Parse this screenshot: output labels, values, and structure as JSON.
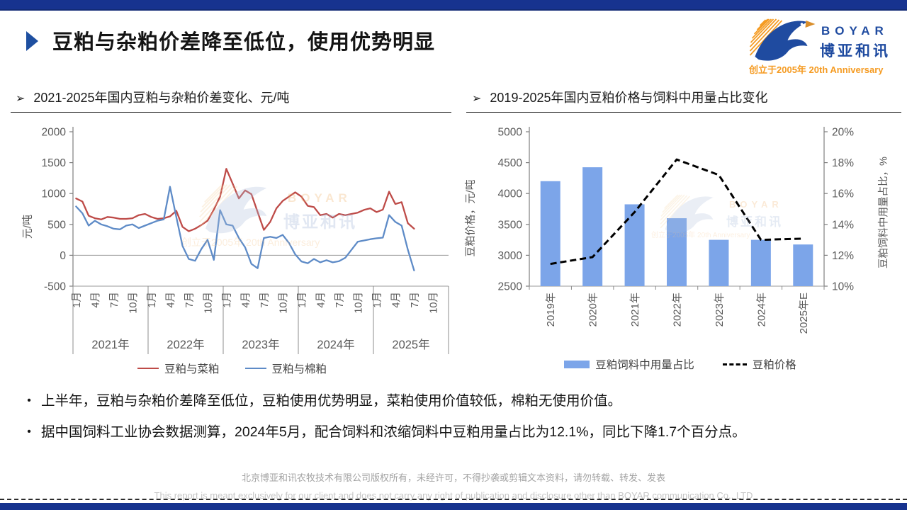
{
  "header": {
    "title": "豆粕与杂粕价差降至低位，使用优势明显",
    "logo": {
      "brand_en": "BOYAR",
      "brand_cn": "博亚和讯",
      "tagline": "创立于2005年 20th Anniversary"
    }
  },
  "section_marker": "➢",
  "chart_data": [
    {
      "id": "soymeal-spread-lines",
      "type": "line",
      "title": "2021-2025年国内豆粕与杂粕价差变化、元/吨",
      "ylabel": "元/吨",
      "ylim": [
        -500,
        2000
      ],
      "yticks": [
        2000,
        1500,
        1000,
        500,
        0,
        -500
      ],
      "x_interval": "monthly",
      "x_month_labels": [
        "1月",
        "4月",
        "7月",
        "10月"
      ],
      "x_year_labels": [
        "2021年",
        "2022年",
        "2023年",
        "2024年",
        "2025年"
      ],
      "months_per_year": 12,
      "grid": "zero-line-only",
      "legend_position": "bottom",
      "series": [
        {
          "name": "豆粕与菜粕",
          "color": "#BE4B48",
          "values": [
            920,
            870,
            640,
            600,
            580,
            620,
            610,
            590,
            590,
            600,
            650,
            670,
            620,
            590,
            600,
            630,
            720,
            460,
            390,
            430,
            490,
            560,
            740,
            950,
            1400,
            1160,
            920,
            1050,
            990,
            700,
            410,
            540,
            760,
            880,
            950,
            1020,
            950,
            800,
            780,
            650,
            670,
            610,
            670,
            650,
            670,
            690,
            735,
            760,
            700,
            740,
            1030,
            830,
            860,
            520,
            430
          ]
        },
        {
          "name": "豆粕与棉粕",
          "color": "#5E8BC7",
          "values": [
            790,
            680,
            480,
            560,
            500,
            470,
            430,
            420,
            480,
            500,
            440,
            480,
            520,
            560,
            580,
            1110,
            620,
            150,
            -60,
            -90,
            100,
            250,
            -75,
            730,
            500,
            480,
            280,
            130,
            -140,
            -210,
            280,
            300,
            280,
            330,
            200,
            15,
            -100,
            -130,
            -60,
            -115,
            -80,
            -115,
            -95,
            -40,
            90,
            220,
            240,
            260,
            275,
            285,
            650,
            540,
            480,
            90,
            -245
          ]
        }
      ]
    },
    {
      "id": "soymeal-price-and-share",
      "type": "bar+line",
      "title": "2019-2025年国内豆粕价格与饲料中用量占比变化",
      "categories": [
        "2019年",
        "2020年",
        "2021年",
        "2022年",
        "2023年",
        "2024年",
        "2025年E"
      ],
      "left_axis": {
        "label": "豆粕价格，元/吨",
        "lim": [
          2500,
          5000
        ],
        "ticks": [
          5000,
          4500,
          4000,
          3500,
          3000,
          2500
        ]
      },
      "right_axis": {
        "label": "豆粕饲料中用量占比，%",
        "lim": [
          10,
          20
        ],
        "tick_labels": [
          "20%",
          "18%",
          "16%",
          "14%",
          "12%",
          "10%"
        ],
        "ticks": [
          20,
          18,
          16,
          14,
          12,
          10
        ]
      },
      "legend_position": "bottom",
      "bar_series": {
        "name": "豆粕饲料中用量占比",
        "axis": "right",
        "unit": "%",
        "color": "#7CA5E9",
        "values": [
          16.8,
          17.7,
          15.3,
          14.4,
          13.0,
          13.0,
          12.7
        ]
      },
      "line_series": {
        "name": "豆粕价格",
        "axis": "left",
        "unit": "元/吨",
        "style": "dashed",
        "color": "#000000",
        "values": [
          2860,
          2970,
          3700,
          4550,
          4300,
          3250,
          3270
        ]
      }
    }
  ],
  "bullets": {
    "marker": "•",
    "items": [
      "上半年，豆粕与杂粕价差降至低位，豆粕使用优势明显，菜粕使用价值较低，棉粕无使用价值。",
      "据中国饲料工业协会数据测算，2024年5月，配合饲料和浓缩饲料中豆粕用量占比为12.1%，同比下降1.7个百分点。"
    ]
  },
  "footer": {
    "line1": "北京博亚和讯农牧技术有限公司版权所有，未经许可，不得抄袭或剪辑文本资料，请勿转载、转发、发表",
    "line2": "This report is meant exclusively for our client and does not carry any right of publication and disclosure other than BOYAR communication Co., LTD"
  },
  "colors": {
    "accent_bar": "#17338F",
    "title_arrow": "#1E4FA0",
    "series_red": "#BE4B48",
    "series_blue": "#5E8BC7",
    "bar_blue": "#7CA5E9",
    "dashed_line": "#000000",
    "logo_blue": "#1F4BA0",
    "logo_orange": "#F59B22"
  }
}
